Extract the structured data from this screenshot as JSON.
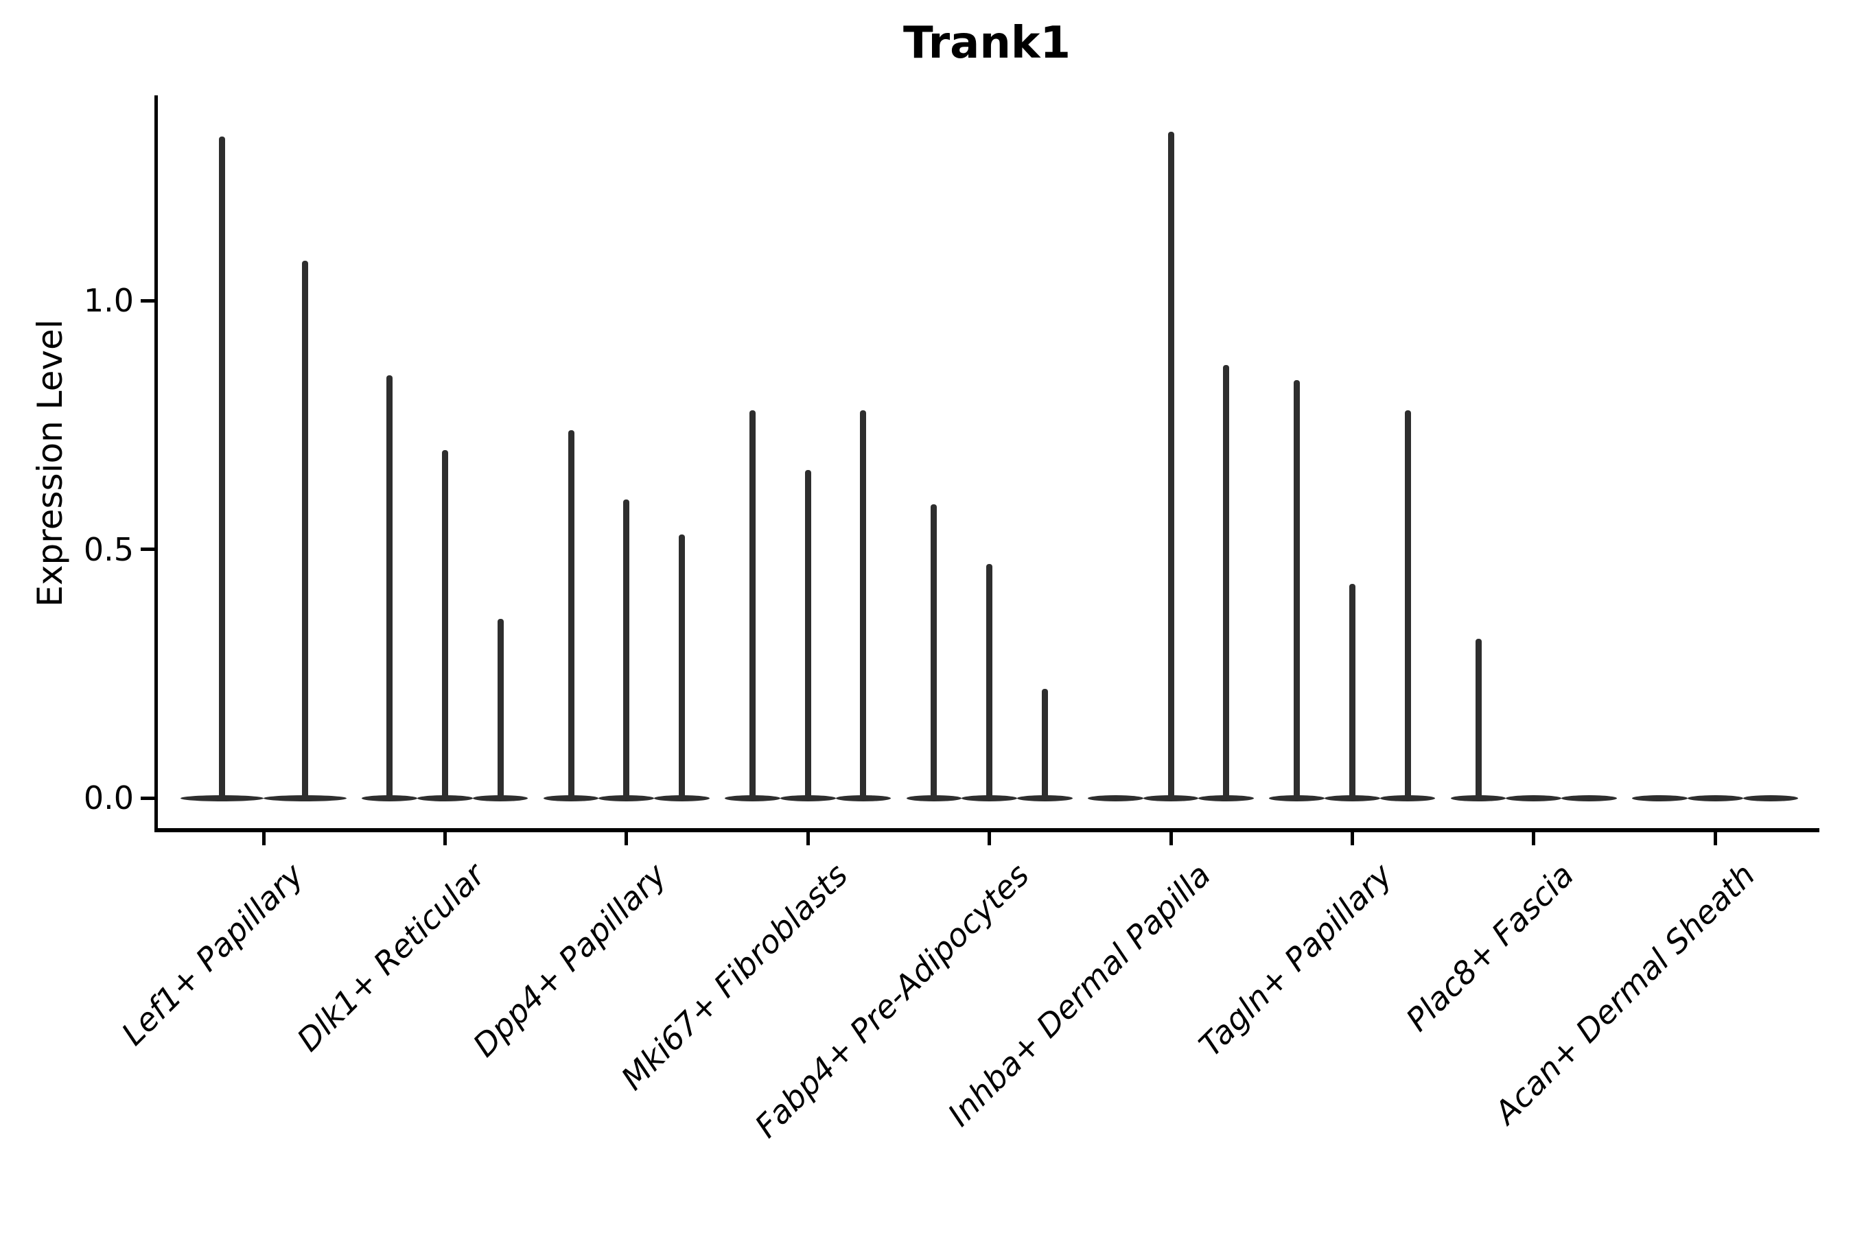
{
  "figure": {
    "title": "Trank1"
  },
  "chart_data": {
    "type": "violin",
    "title": "Trank1",
    "xlabel": "",
    "ylabel": "Expression Level",
    "ylim": [
      -0.065,
      1.41
    ],
    "yticks": [
      0.0,
      0.5,
      1.0
    ],
    "ytick_labels": [
      "0.0",
      "0.5",
      "1.0"
    ],
    "legend": "none",
    "grid": "off",
    "categories": [
      "Lef1+ Papillary",
      "Dlk1+ Reticular",
      "Dpp4+ Papillary",
      "Mki67+ Fibroblasts",
      "Fabp4+ Pre-Adipocytes",
      "Inhba+ Dermal Papilla",
      "Tagln+ Papillary",
      "Plac8+ Fascia",
      "Acan+ Dermal Sheath"
    ],
    "groups": [
      {
        "category": "Lef1+ Papillary",
        "violin_peaks": [
          1.33,
          1.08
        ]
      },
      {
        "category": "Dlk1+ Reticular",
        "violin_peaks": [
          0.85,
          0.7,
          0.36
        ]
      },
      {
        "category": "Dpp4+ Papillary",
        "violin_peaks": [
          0.74,
          0.6,
          0.53
        ]
      },
      {
        "category": "Mki67+ Fibroblasts",
        "violin_peaks": [
          0.78,
          0.66,
          0.78
        ]
      },
      {
        "category": "Fabp4+ Pre-Adipocytes",
        "violin_peaks": [
          0.59,
          0.47,
          0.22
        ]
      },
      {
        "category": "Inhba+ Dermal Papilla",
        "violin_peaks": [
          0.0,
          1.34,
          0.87
        ]
      },
      {
        "category": "Tagln+ Papillary",
        "violin_peaks": [
          0.84,
          0.43,
          0.78
        ]
      },
      {
        "category": "Plac8+ Fascia",
        "violin_peaks": [
          0.32,
          0.0,
          0.0
        ]
      },
      {
        "category": "Acan+ Dermal Sheath",
        "violin_peaks": [
          0.0,
          0.0,
          0.0
        ]
      }
    ],
    "style": {
      "violin_color": "#2e2e2e",
      "axis_color": "#000000",
      "background_color": "#ffffff"
    }
  }
}
